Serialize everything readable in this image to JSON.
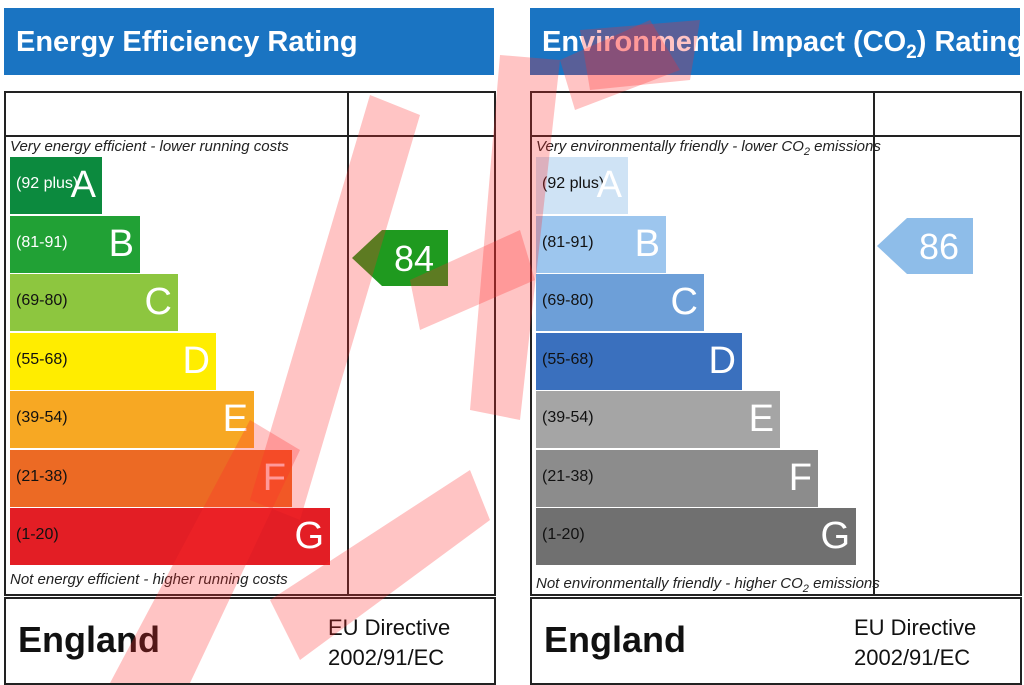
{
  "energy": {
    "title": "Energy Efficiency Rating",
    "note_top": "Very energy efficient - lower running costs",
    "note_bottom": "Not energy efficient - higher running costs",
    "current_rating": "84",
    "current_color": "#1f9a1f",
    "bands": [
      {
        "range": "(92 plus)",
        "letter": "A",
        "color": "#0c8a3e"
      },
      {
        "range": "(81-91)",
        "letter": "B",
        "color": "#21a135"
      },
      {
        "range": "(69-80)",
        "letter": "C",
        "color": "#8dc63f"
      },
      {
        "range": "(55-68)",
        "letter": "D",
        "color": "#ffed00"
      },
      {
        "range": "(39-54)",
        "letter": "E",
        "color": "#f7a823"
      },
      {
        "range": "(21-38)",
        "letter": "F",
        "color": "#ec6a24"
      },
      {
        "range": "(1-20)",
        "letter": "G",
        "color": "#e31e25"
      }
    ],
    "country": "England",
    "directive_line1": "EU Directive",
    "directive_line2": "2002/91/EC"
  },
  "environment": {
    "title_part1": "Environmental Impact (CO",
    "title_sub": "2",
    "title_part2": ") Rating",
    "note_top_part1": "Very environmentally friendly - lower CO",
    "note_top_sub": "2",
    "note_top_part2": " emissions",
    "note_bottom_part1": "Not environmentally friendly - higher CO",
    "note_bottom_sub": "2",
    "note_bottom_part2": " emissions",
    "current_rating": "86",
    "current_color": "#8ebde9",
    "bands": [
      {
        "range": "(92 plus)",
        "letter": "A",
        "color": "#cfe3f5"
      },
      {
        "range": "(81-91)",
        "letter": "B",
        "color": "#9dc6ee"
      },
      {
        "range": "(69-80)",
        "letter": "C",
        "color": "#6d9fd8"
      },
      {
        "range": "(55-68)",
        "letter": "D",
        "color": "#3a70be"
      },
      {
        "range": "(39-54)",
        "letter": "E",
        "color": "#a5a5a5"
      },
      {
        "range": "(21-38)",
        "letter": "F",
        "color": "#8c8c8c"
      },
      {
        "range": "(1-20)",
        "letter": "G",
        "color": "#707070"
      }
    ],
    "country": "England",
    "directive_line1": "EU Directive",
    "directive_line2": "2002/91/EC"
  },
  "watermark_color": "#ff2b2b"
}
